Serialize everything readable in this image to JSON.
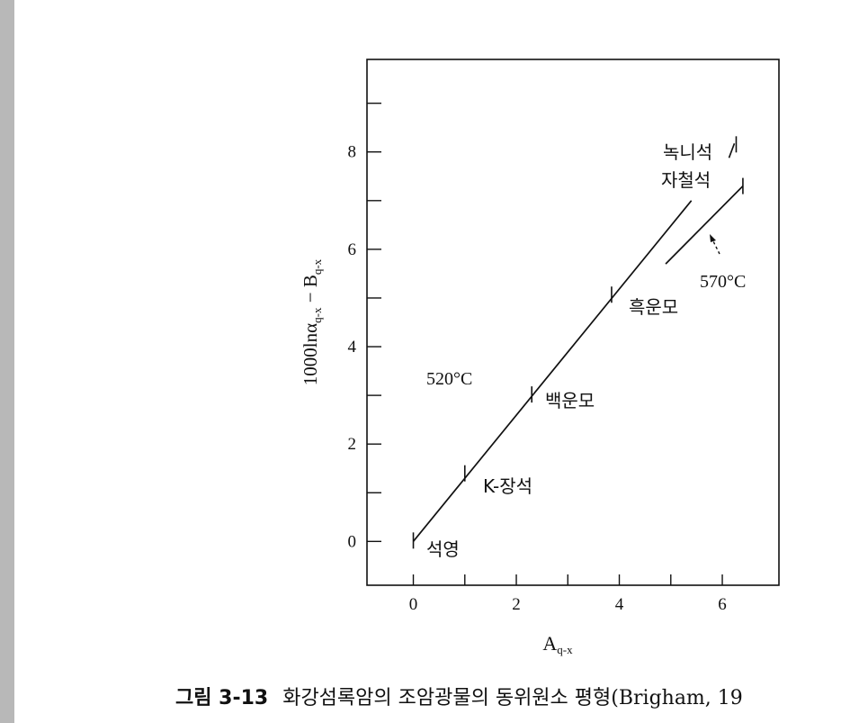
{
  "chart_data": {
    "type": "line",
    "xlabel": "A",
    "xlabel_sub": "q-x",
    "ylabel": "1000lnα",
    "ylabel_sub1": "q-x",
    "ylabel_mid": " − B",
    "ylabel_sub2": "q-x",
    "xlim": [
      -0.9,
      7.1
    ],
    "ylim": [
      -0.9,
      9.9
    ],
    "x_ticks": [
      0,
      2,
      4,
      6
    ],
    "y_ticks": [
      0,
      2,
      4,
      6,
      8
    ],
    "series": [
      {
        "name": "520°C",
        "x": [
          0,
          5.4
        ],
        "y": [
          0,
          7.0
        ],
        "markers": [
          {
            "x": 0,
            "y": 0,
            "label": "석영"
          },
          {
            "x": 1.0,
            "y": 1.38,
            "label": "K-장석"
          },
          {
            "x": 2.3,
            "y": 3.0,
            "label": "백운모"
          },
          {
            "x": 3.85,
            "y": 5.05,
            "label": "흑운모"
          },
          {
            "x": 5.35,
            "y": 6.95,
            "label": "자철석"
          }
        ]
      },
      {
        "name": "570°C",
        "x": [
          4.9,
          6.4
        ],
        "y": [
          5.7,
          7.3
        ],
        "markers": [
          {
            "x": 6.4,
            "y": 7.3,
            "label": ""
          },
          {
            "x": 6.2,
            "y": 8.1,
            "label": "녹니석"
          }
        ]
      }
    ],
    "annotations": [
      "520°C",
      "570°C"
    ]
  },
  "caption": {
    "number": "그림 3-13",
    "text": "화강섬록암의 조암광물의 동위원소 평형(Brigham, 19"
  }
}
